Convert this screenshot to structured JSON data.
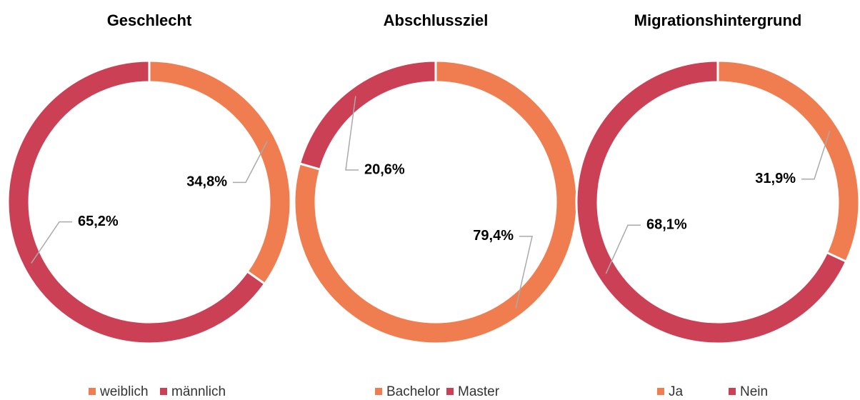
{
  "chart_data": [
    {
      "type": "donut",
      "title": "Geschlecht",
      "categories": [
        "weiblich",
        "männlich"
      ],
      "values": [
        34.8,
        65.2
      ],
      "value_labels": [
        "34,8%",
        "65,2%"
      ],
      "colors": [
        "#ef7d4f",
        "#cc4055"
      ]
    },
    {
      "type": "donut",
      "title": "Abschlussziel",
      "categories": [
        "Bachelor",
        "Master"
      ],
      "values": [
        79.4,
        20.6
      ],
      "value_labels": [
        "79,4%",
        "20,6%"
      ],
      "colors": [
        "#ef7d4f",
        "#cc4055"
      ]
    },
    {
      "type": "donut",
      "title": "Migrationshintergrund",
      "categories": [
        "Ja",
        "Nein"
      ],
      "values": [
        31.9,
        68.1
      ],
      "value_labels": [
        "31,9%",
        "68,1%"
      ],
      "colors": [
        "#ef7d4f",
        "#cc4055"
      ]
    }
  ]
}
